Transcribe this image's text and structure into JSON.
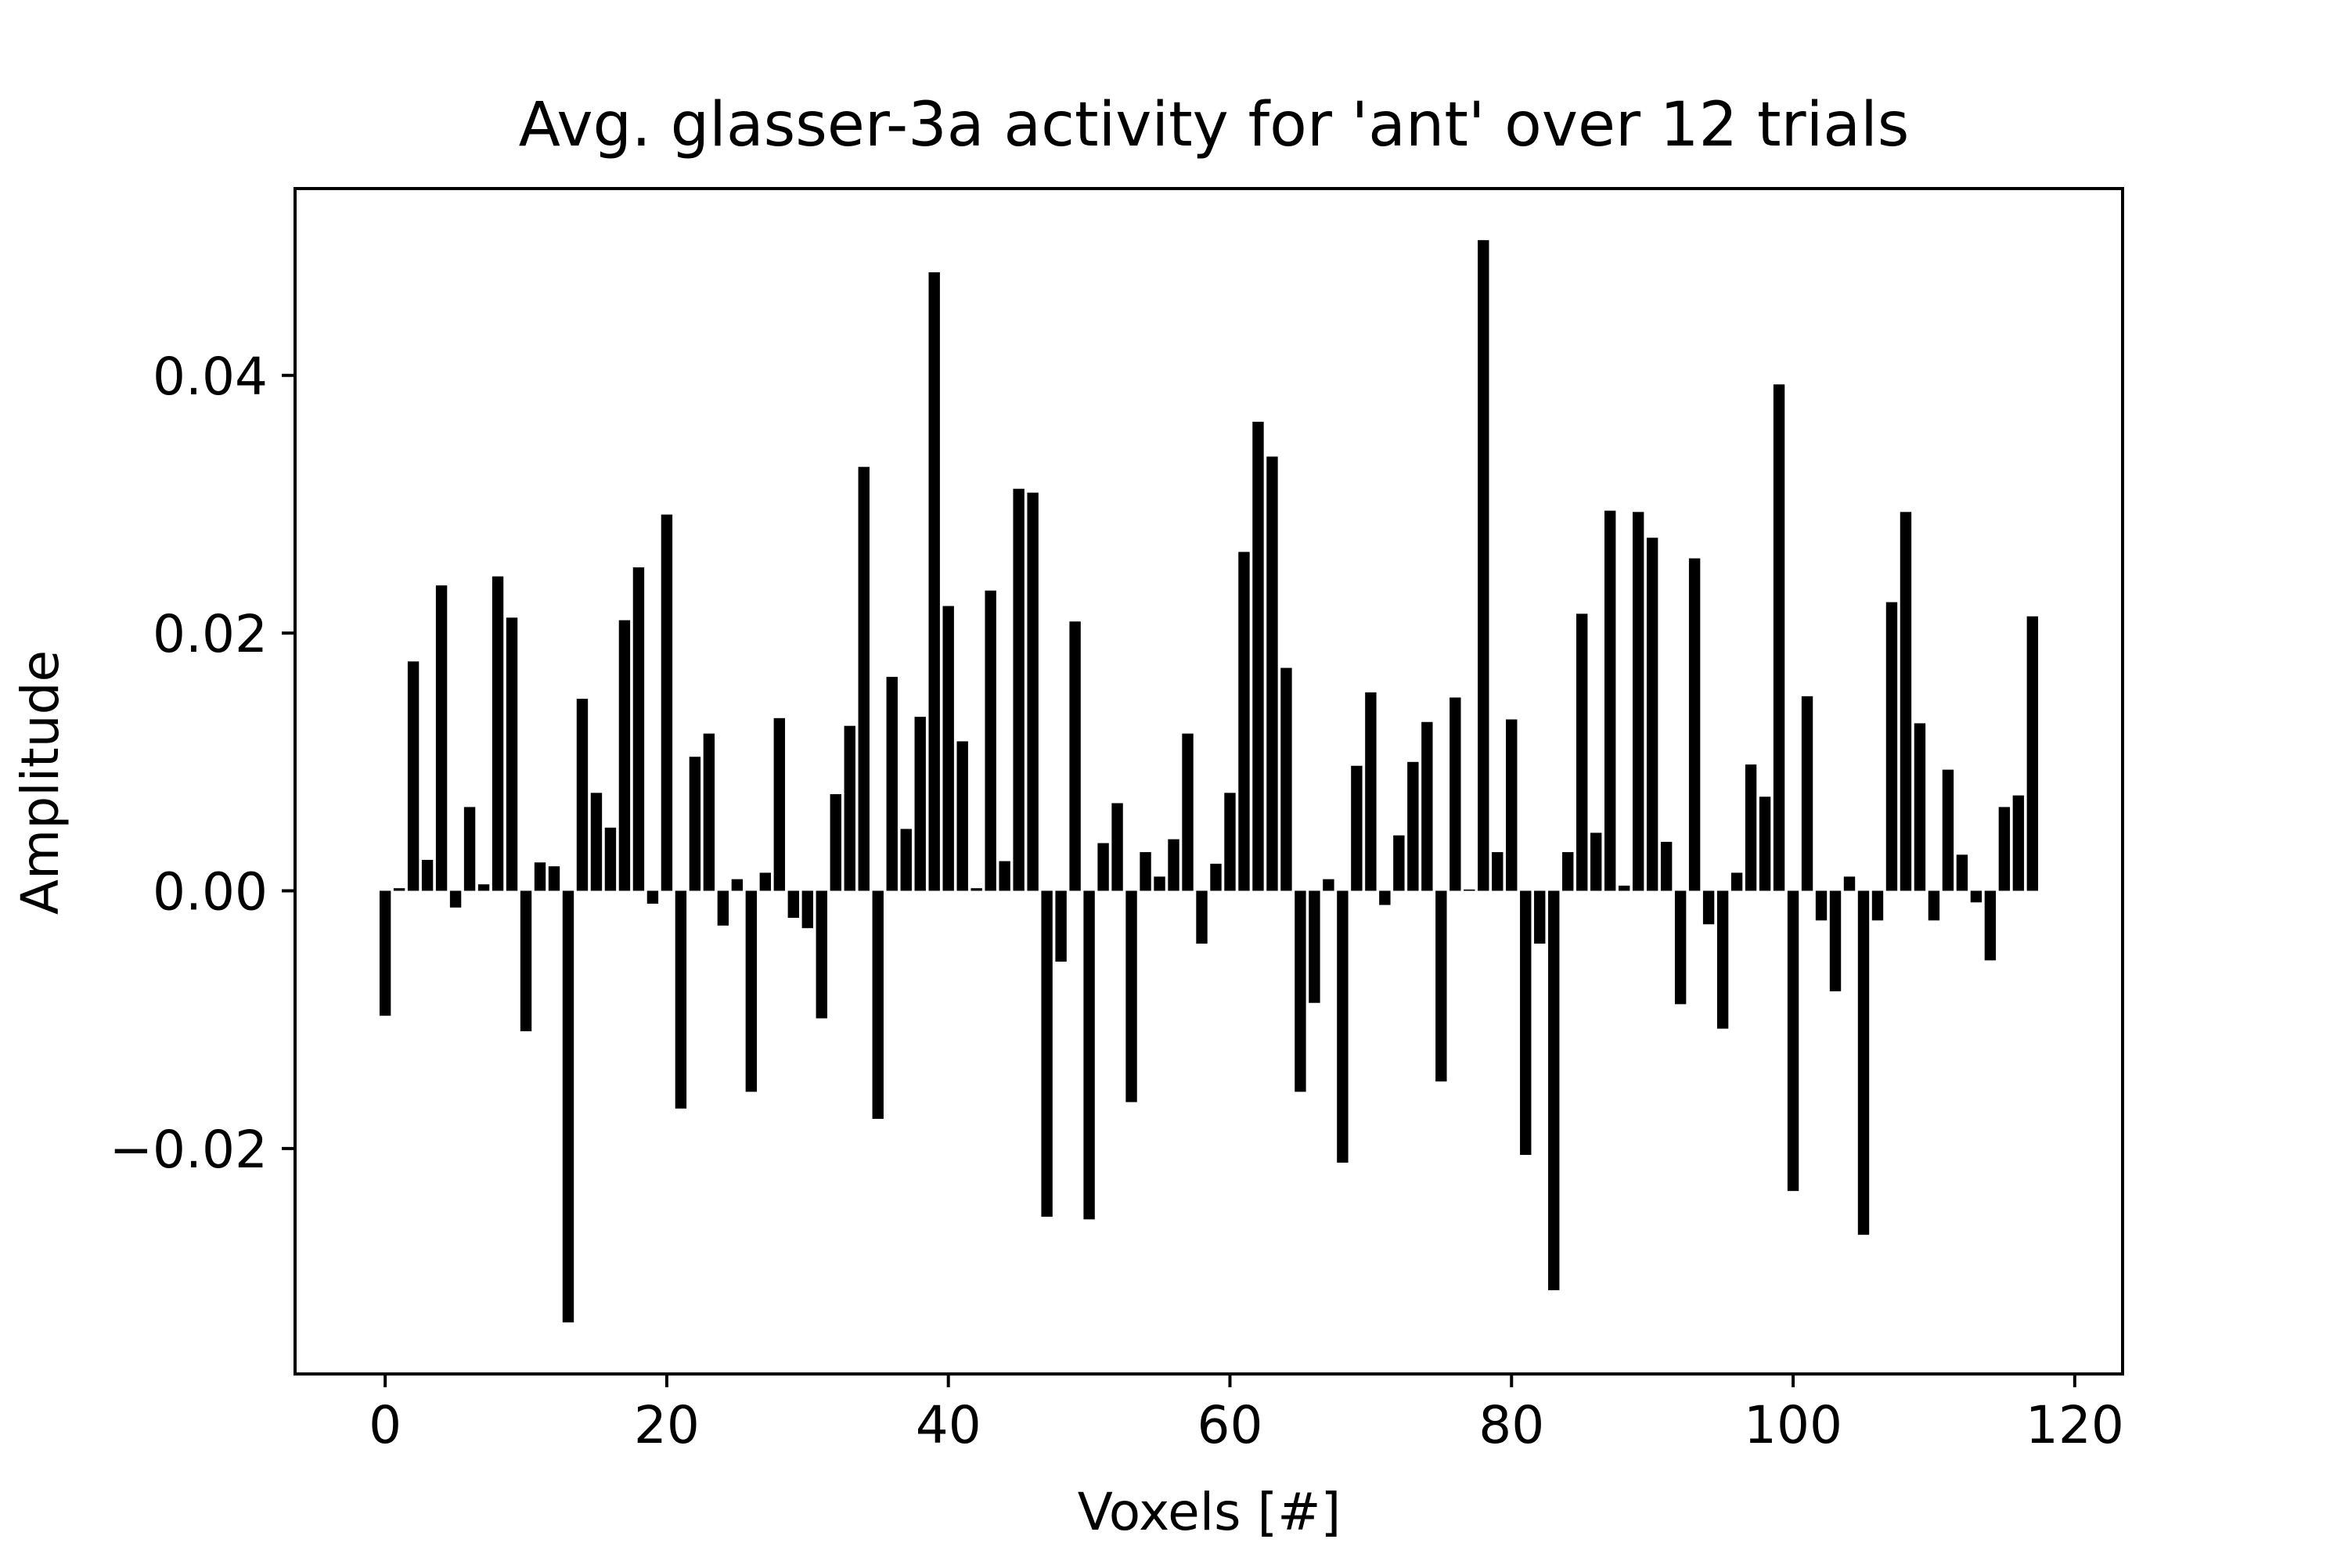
{
  "chart_data": {
    "type": "bar",
    "title": "Avg. glasser-3a activity for 'ant' over 12 trials",
    "xlabel": "Voxels [#]",
    "ylabel": "Amplitude",
    "xlim": [
      -6.4,
      123.4
    ],
    "ylim": [
      -0.0375,
      0.0545
    ],
    "xticks": [
      0,
      20,
      40,
      60,
      80,
      100,
      120
    ],
    "xtick_labels": [
      "0",
      "20",
      "40",
      "60",
      "80",
      "100",
      "120"
    ],
    "yticks": [
      -0.02,
      0.0,
      0.02,
      0.04
    ],
    "ytick_labels": [
      "−0.02",
      "0.00",
      "0.02",
      "0.04"
    ],
    "bar_color": "#000000",
    "grid": false,
    "legend": "none",
    "x": [
      0,
      1,
      2,
      3,
      4,
      5,
      6,
      7,
      8,
      9,
      10,
      11,
      12,
      13,
      14,
      15,
      16,
      17,
      18,
      19,
      20,
      21,
      22,
      23,
      24,
      25,
      26,
      27,
      28,
      29,
      30,
      31,
      32,
      33,
      34,
      35,
      36,
      37,
      38,
      39,
      40,
      41,
      42,
      43,
      44,
      45,
      46,
      47,
      48,
      49,
      50,
      51,
      52,
      53,
      54,
      55,
      56,
      57,
      58,
      59,
      60,
      61,
      62,
      63,
      64,
      65,
      66,
      67,
      68,
      69,
      70,
      71,
      72,
      73,
      74,
      75,
      76,
      77,
      78,
      79,
      80,
      81,
      82,
      83,
      84,
      85,
      86,
      87,
      88,
      89,
      90,
      91,
      92,
      93,
      94,
      95,
      96,
      97,
      98,
      99,
      100,
      101,
      102,
      103,
      104,
      105,
      106,
      107,
      108,
      109,
      110,
      111,
      112,
      113,
      114,
      115,
      116,
      117
    ],
    "values": [
      -0.0097,
      0.0002,
      0.0178,
      0.0024,
      0.0237,
      -0.0013,
      0.0065,
      0.0005,
      0.0244,
      0.0212,
      -0.0109,
      0.0022,
      0.0019,
      -0.0335,
      0.0149,
      0.0076,
      0.0049,
      0.021,
      0.0251,
      -0.001,
      0.0292,
      -0.0169,
      0.0104,
      0.0122,
      -0.0027,
      0.0009,
      -0.0156,
      0.0014,
      0.0134,
      -0.0021,
      -0.0029,
      -0.0099,
      0.0075,
      0.0128,
      0.0329,
      -0.0177,
      0.0166,
      0.0048,
      0.0135,
      0.048,
      0.0221,
      0.0116,
      0.0002,
      0.0233,
      0.0023,
      0.0312,
      0.0309,
      -0.0253,
      -0.0055,
      0.0209,
      -0.0255,
      0.0037,
      0.0068,
      -0.0164,
      0.003,
      0.0011,
      0.004,
      0.0122,
      -0.0041,
      0.0021,
      0.0076,
      0.0263,
      0.0364,
      0.0337,
      0.0173,
      -0.0156,
      -0.0087,
      0.0009,
      -0.0211,
      0.0097,
      0.0154,
      -0.0011,
      0.0043,
      0.01,
      0.0131,
      -0.0148,
      0.015,
      0.0001,
      0.0505,
      0.003,
      0.0133,
      -0.0205,
      -0.0041,
      -0.031,
      0.003,
      0.0215,
      0.0045,
      0.0295,
      0.0004,
      0.0294,
      0.0274,
      0.0038,
      -0.0088,
      0.0258,
      -0.0026,
      -0.0107,
      0.0014,
      0.0098,
      0.0073,
      0.0393,
      -0.0233,
      0.0151,
      -0.0023,
      -0.0078,
      0.0011,
      -0.0267,
      -0.0023,
      0.0224,
      0.0294,
      0.013,
      -0.0023,
      0.0094,
      0.0028,
      -0.0009,
      -0.0054,
      0.0065,
      0.0074,
      0.0213
    ]
  }
}
